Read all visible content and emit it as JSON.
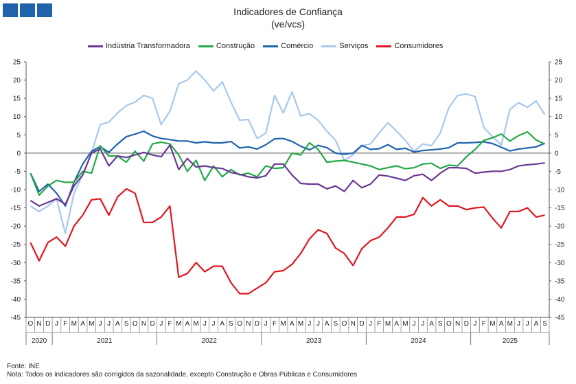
{
  "logo": {
    "label": "INE",
    "color": "#1f63ad"
  },
  "footer": {
    "source": "Fonte: INE",
    "note": "Nota: Todos os indicadores são corrigidos da sazonalidade, excepto Construção e Obras Públicas e Consumidores"
  },
  "chart_data": {
    "type": "line",
    "title": "Indicadores de Confiança",
    "subtitle": "(ve/vcs)",
    "ylim": [
      -45,
      25
    ],
    "yticks": [
      25,
      20,
      15,
      10,
      5,
      0,
      -5,
      -10,
      -15,
      -20,
      -25,
      -30,
      -35,
      -40,
      -45
    ],
    "months": [
      "O",
      "N",
      "D",
      "J",
      "F",
      "M",
      "A",
      "M",
      "J",
      "J",
      "A",
      "S",
      "O",
      "N",
      "D",
      "J",
      "F",
      "M",
      "A",
      "M",
      "J",
      "J",
      "A",
      "S",
      "O",
      "N",
      "D",
      "J",
      "F",
      "M",
      "A",
      "M",
      "J",
      "J",
      "A",
      "S",
      "O",
      "N",
      "D",
      "J",
      "F",
      "M",
      "A",
      "M",
      "J",
      "J",
      "A",
      "S",
      "O",
      "N",
      "D",
      "J",
      "F",
      "M",
      "A",
      "M",
      "J",
      "J",
      "A",
      "S"
    ],
    "years": [
      {
        "label": "2020",
        "start": 0,
        "count": 3
      },
      {
        "label": "2021",
        "start": 3,
        "count": 12
      },
      {
        "label": "2022",
        "start": 15,
        "count": 12
      },
      {
        "label": "2023",
        "start": 27,
        "count": 12
      },
      {
        "label": "2024",
        "start": 39,
        "count": 12
      },
      {
        "label": "2025",
        "start": 51,
        "count": 9
      }
    ],
    "series": [
      {
        "name": "Serviços",
        "color": "#a6c8ed",
        "values": [
          -14.5,
          -16,
          -14.5,
          -12.5,
          -22,
          -11,
          -6,
          0,
          7.8,
          8.5,
          11,
          13,
          14,
          15.8,
          15,
          7.8,
          11.5,
          19,
          20,
          22.5,
          20,
          17,
          19.5,
          14,
          9,
          9.2,
          4,
          5.5,
          15.8,
          11,
          16.8,
          10.2,
          10.8,
          9,
          6,
          3.5,
          -2,
          -0.5,
          2,
          2.5,
          5.5,
          8.3,
          6,
          3.5,
          0.5,
          2.5,
          2,
          5.5,
          12.5,
          15.8,
          16.2,
          15.5,
          7,
          4.5,
          2.2,
          12,
          13.8,
          12.5,
          14.3,
          10.5
        ]
      },
      {
        "name": "Comércio",
        "color": "#1f63ad",
        "values": [
          -5.5,
          -10.5,
          -8.5,
          -11,
          -14.5,
          -8,
          -3,
          0.5,
          1.8,
          0.2,
          2.5,
          4.5,
          5.2,
          6,
          4.7,
          4,
          3.7,
          3.3,
          3.3,
          2.8,
          3.1,
          2.8,
          2.8,
          3.2,
          1.4,
          1.7,
          1.1,
          2.3,
          3.9,
          4,
          3.2,
          1.9,
          0.9,
          2.1,
          1.5,
          0,
          -0.3,
          0,
          2.1,
          1,
          1.2,
          2.3,
          1,
          1.3,
          0.3,
          0.7,
          0.9,
          1.1,
          1.5,
          2.8,
          2.8,
          2.9,
          3.1,
          2.6,
          1.6,
          0.6,
          1.1,
          1.4,
          1.7,
          2.7
        ]
      },
      {
        "name": "Construção",
        "color": "#22a845",
        "values": [
          -5.5,
          -11.5,
          -9,
          -7.5,
          -8,
          -8,
          -5,
          -5.5,
          2,
          -0.8,
          -0.8,
          -2.5,
          0.5,
          -2.2,
          2.5,
          3,
          2.5,
          -0.5,
          -5,
          -2,
          -7.5,
          -3.5,
          -6.5,
          -4.5,
          -6,
          -5.5,
          -6.5,
          -3.5,
          -4.2,
          -4,
          0,
          -0.5,
          2.8,
          1,
          -2.5,
          -2.2,
          -2,
          -2.5,
          -3,
          -3.5,
          -4.5,
          -4,
          -3.5,
          -4.3,
          -4,
          -3,
          -2.8,
          -4.2,
          -3.3,
          -3.5,
          -1,
          1,
          3.5,
          4.2,
          5.2,
          3.3,
          4.8,
          5.8,
          3.6,
          2.5
        ]
      },
      {
        "name": "Indústria Transformadora",
        "color": "#6a3795",
        "values": [
          -13,
          -14.5,
          -13.5,
          -12.5,
          -14,
          -9,
          -6,
          0,
          1.2,
          -3.5,
          -0.8,
          -1.2,
          -0.5,
          0.2,
          -0.5,
          -1,
          2.2,
          -4.5,
          -1.5,
          -3.8,
          -3.5,
          -4,
          -4.2,
          -5.3,
          -5.8,
          -6.5,
          -6.8,
          -6.2,
          -3,
          -3,
          -6,
          -8.3,
          -8.5,
          -8.5,
          -9.8,
          -9,
          -10.5,
          -7.5,
          -9.5,
          -8.5,
          -6,
          -6.3,
          -6.9,
          -7.5,
          -6.2,
          -5.8,
          -7.5,
          -5.5,
          -4,
          -4,
          -4.2,
          -5.5,
          -5.2,
          -5,
          -5,
          -4.5,
          -3.5,
          -3.2,
          -3,
          -2.7
        ]
      },
      {
        "name": "Consumidores",
        "color": "#e3151f",
        "values": [
          -24.5,
          -29.5,
          -24.5,
          -23,
          -25.5,
          -20,
          -17,
          -12.8,
          -12.5,
          -17,
          -12,
          -9.8,
          -11,
          -19,
          -19,
          -17.5,
          -14.5,
          -34,
          -33,
          -30,
          -32.5,
          -31,
          -31,
          -35.5,
          -38.5,
          -38.5,
          -37,
          -35.5,
          -32.5,
          -32.2,
          -30.5,
          -27.5,
          -23.5,
          -21,
          -22,
          -26,
          -27.5,
          -30.8,
          -26.2,
          -24,
          -23,
          -20.5,
          -17.5,
          -17.5,
          -16.8,
          -12.2,
          -14.5,
          -12.8,
          -14.5,
          -14.5,
          -15.5,
          -15,
          -14.8,
          -17.8,
          -20.5,
          -16,
          -16,
          -15,
          -17.5,
          -17
        ]
      }
    ],
    "legend_order": [
      "Indústria Transformadora",
      "Construção",
      "Comércio",
      "Serviços",
      "Consumidores"
    ],
    "legend_position": "top"
  }
}
